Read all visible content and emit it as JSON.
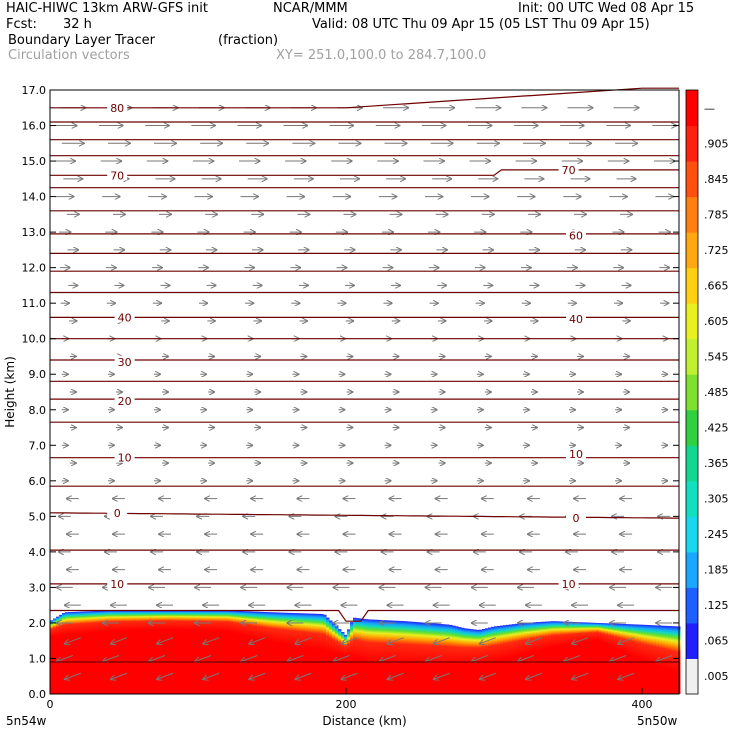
{
  "header": {
    "line1_left": "HAIC-HIWC 13km ARW-GFS init",
    "line1_mid": "NCAR/MMM",
    "line1_right": "Init: 00 UTC Wed 08 Apr 15",
    "line2_left": "Fcst:",
    "line2_left_val": "32 h",
    "line2_right": "Valid: 08 UTC Thu 09 Apr 15 (05 LST Thu 09 Apr 15)",
    "line3_left": "Boundary Layer Tracer",
    "line3_mid": "(fraction)",
    "line4_left": "Circulation vectors",
    "line4_mid": "XY= 251.0,100.0 to 284.7,100.0"
  },
  "chart_data": {
    "type": "heatmap",
    "title": "Boundary Layer Tracer",
    "units": "(fraction)",
    "xlabel": "Distance (km)",
    "ylabel": "Height (km)",
    "xlim": [
      0,
      425
    ],
    "ylim": [
      0,
      17
    ],
    "x_ticks": [
      "0",
      "200",
      "400"
    ],
    "x_end_labels": [
      "5n54w",
      "5n50w"
    ],
    "y_ticks": [
      "0.0",
      "1.0",
      "2.0",
      "3.0",
      "4.0",
      "5.0",
      "6.0",
      "7.0",
      "8.0",
      "9.0",
      "10.0",
      "11.0",
      "12.0",
      "13.0",
      "14.0",
      "15.0",
      "16.0",
      "17.0"
    ],
    "colorbar_labels": [
      ".005",
      ".065",
      ".125",
      ".185",
      ".245",
      ".305",
      ".365",
      ".425",
      ".485",
      ".545",
      ".605",
      ".665",
      ".725",
      ".785",
      ".845",
      ".905",
      "—"
    ],
    "colorbar_colors": [
      "#f0f0f0",
      "#2020ff",
      "#1e60ff",
      "#1aa8ff",
      "#18d8f0",
      "#10e0c0",
      "#10d890",
      "#30d040",
      "#80e030",
      "#c0f030",
      "#e8f020",
      "#ffd010",
      "#ffa810",
      "#ff8010",
      "#ff5010",
      "#ff2010",
      "#ff0000"
    ],
    "contour_labels": [
      {
        "label": "80",
        "x": 40,
        "h": 16.5
      },
      {
        "label": "70",
        "x": 40,
        "h": 14.6
      },
      {
        "label": "70",
        "x": 345,
        "h": 14.75
      },
      {
        "label": "60",
        "x": 350,
        "h": 12.9
      },
      {
        "label": "40",
        "x": 45,
        "h": 10.6
      },
      {
        "label": "40",
        "x": 350,
        "h": 10.55
      },
      {
        "label": "30",
        "x": 45,
        "h": 9.35
      },
      {
        "label": "20",
        "x": 45,
        "h": 8.25
      },
      {
        "label": "10",
        "x": 45,
        "h": 6.65
      },
      {
        "label": "10",
        "x": 350,
        "h": 6.75
      },
      {
        "label": "0",
        "x": 40,
        "h": 5.1
      },
      {
        "label": "0",
        "x": 350,
        "h": 4.95
      },
      {
        "label": "10",
        "x": 40,
        "h": 3.1
      },
      {
        "label": "10",
        "x": 345,
        "h": 3.1
      }
    ],
    "tracer_top_profile": {
      "x": [
        0,
        10,
        40,
        80,
        120,
        150,
        185,
        195,
        200,
        205,
        215,
        240,
        270,
        280,
        290,
        300,
        320,
        340,
        370,
        400,
        425
      ],
      "h": [
        2.05,
        2.3,
        2.35,
        2.35,
        2.35,
        2.3,
        2.25,
        1.85,
        1.65,
        2.15,
        2.1,
        2.05,
        1.95,
        1.85,
        1.8,
        1.9,
        2.0,
        2.05,
        2.0,
        1.95,
        1.9
      ]
    },
    "red_top_profile": {
      "x": [
        0,
        40,
        80,
        120,
        150,
        185,
        200,
        215,
        240,
        270,
        300,
        340,
        370,
        400,
        425
      ],
      "h": [
        1.65,
        1.8,
        1.85,
        1.8,
        1.5,
        1.25,
        1.1,
        0.95,
        0.9,
        0.85,
        0.95,
        1.35,
        1.55,
        1.0,
        0.6
      ]
    }
  }
}
